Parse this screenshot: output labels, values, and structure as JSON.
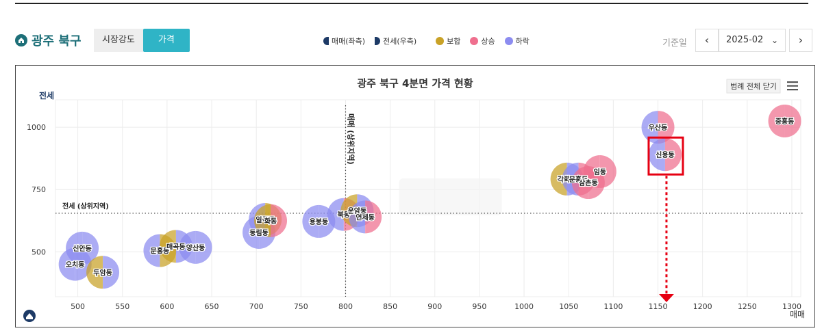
{
  "header": {
    "title": "광주 북구",
    "tabs": [
      "시장강도",
      "가격"
    ],
    "active_tab": 1,
    "legend": [
      {
        "label": "매매(좌측)",
        "kind": "half-left",
        "color": "#1d3a66"
      },
      {
        "label": "전세(우측)",
        "kind": "half-right",
        "color": "#1d3a66"
      },
      {
        "label": "보합",
        "kind": "dot",
        "color": "#c9a227"
      },
      {
        "label": "상승",
        "kind": "dot",
        "color": "#ef6f8e"
      },
      {
        "label": "하락",
        "kind": "dot",
        "color": "#8c8cf0"
      }
    ],
    "date_label": "기준일",
    "date_value": "2025-02",
    "prev": "‹",
    "next": "›",
    "caret": "⌄"
  },
  "toolbar": {
    "close_legend": "범례 전체 닫기"
  },
  "chart_data": {
    "type": "scatter",
    "title": "광주 북구 4분면 가격 현황",
    "xlabel": "매매",
    "ylabel": "전세",
    "xlim": [
      475,
      1310
    ],
    "ylim": [
      320,
      1110
    ],
    "xticks": [
      500,
      550,
      600,
      650,
      700,
      750,
      800,
      850,
      900,
      950,
      1000,
      1050,
      1100,
      1150,
      1200,
      1250,
      1300
    ],
    "yticks": [
      500,
      750,
      1000
    ],
    "grid": true,
    "ref_lines": [
      {
        "axis": "x",
        "value": 800,
        "label": "매매 (상위지역)"
      },
      {
        "axis": "y",
        "value": 655,
        "label": "전세 (상위지역)"
      }
    ],
    "colors": {
      "보합": "#c9a227",
      "상승": "#ef6f8e",
      "하락": "#8c8cf0"
    },
    "points": [
      {
        "name": "신안동",
        "x": 505,
        "y": 515,
        "sale": "하락",
        "jeonse": "하락"
      },
      {
        "name": "오치동",
        "x": 497,
        "y": 450,
        "sale": "하락",
        "jeonse": "하락"
      },
      {
        "name": "두암동",
        "x": 528,
        "y": 418,
        "sale": "보합",
        "jeonse": "하락"
      },
      {
        "name": "문흥동",
        "x": 592,
        "y": 505,
        "sale": "하락",
        "jeonse": "보합"
      },
      {
        "name": "매곡동",
        "x": 610,
        "y": 522,
        "sale": "보합",
        "jeonse": "하락"
      },
      {
        "name": "양산동",
        "x": 632,
        "y": 518,
        "sale": "하락",
        "jeonse": "하락"
      },
      {
        "name": "동림동",
        "x": 703,
        "y": 578,
        "sale": "하락",
        "jeonse": "하락"
      },
      {
        "name": "일곡동",
        "x": 710,
        "y": 630,
        "sale": "하락",
        "jeonse": "보합"
      },
      {
        "name": "화동",
        "x": 716,
        "y": 625,
        "sale": "보합",
        "jeonse": "상승"
      },
      {
        "name": "용봉동",
        "x": 770,
        "y": 622,
        "sale": "하락",
        "jeonse": "하락"
      },
      {
        "name": "북동",
        "x": 798,
        "y": 650,
        "sale": "하락",
        "jeonse": "상승"
      },
      {
        "name": "운암동",
        "x": 813,
        "y": 665,
        "sale": "보합",
        "jeonse": "하락"
      },
      {
        "name": "연제동",
        "x": 822,
        "y": 640,
        "sale": "하락",
        "jeonse": "상승"
      },
      {
        "name": "각화동",
        "x": 1048,
        "y": 792,
        "sale": "보합",
        "jeonse": "하락"
      },
      {
        "name": "문흥동",
        "x": 1061,
        "y": 792,
        "sale": "하락",
        "jeonse": "상승"
      },
      {
        "name": "삼촌동",
        "x": 1072,
        "y": 778,
        "sale": "상승",
        "jeonse": "상승"
      },
      {
        "name": "임동",
        "x": 1085,
        "y": 822,
        "sale": "상승",
        "jeonse": "상승"
      },
      {
        "name": "우산동",
        "x": 1150,
        "y": 1000,
        "sale": "하락",
        "jeonse": "상승"
      },
      {
        "name": "신용동",
        "x": 1158,
        "y": 890,
        "sale": "하락",
        "jeonse": "상승"
      },
      {
        "name": "중흥동",
        "x": 1292,
        "y": 1025,
        "sale": "상승",
        "jeonse": "상승"
      }
    ],
    "highlight": "신용동"
  }
}
